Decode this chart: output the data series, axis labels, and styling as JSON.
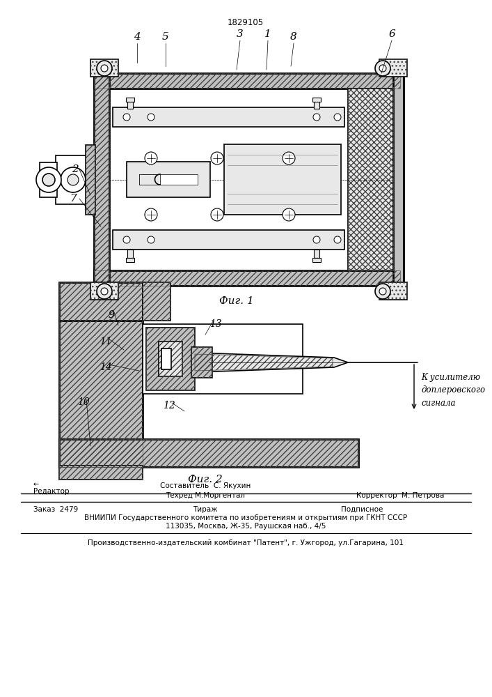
{
  "patent_number": "1829105",
  "background_color": "#ffffff",
  "fig_width": 7.07,
  "fig_height": 10.0,
  "footer_line1_left": "Заказ  2479",
  "footer_line1_mid": "Тираж",
  "footer_line1_right": "Подписное",
  "footer_line2": "ВНИИПИ Государственного комитета по изобретениям и открытиям при ГКНТ СССР",
  "footer_line3": "113035, Москва, Ж-35, Раушская наб., 4/5",
  "footer_line4": "Производственно-издательский комбинат \"Патент\", г. Ужгород, ул.Гагарина, 101",
  "staff_row1_mid": "Составитель  С. Якухин",
  "staff_row2_left": "Редактор",
  "staff_row2_mid": "Техред М.Моргентал",
  "staff_row2_right": "Корректор  М. Петрова",
  "fig1_caption": "Фиг. 1",
  "fig2_caption": "Фиг. 2",
  "fig2_annotation": "К усилителю\nдоплеровского\nсигнала"
}
